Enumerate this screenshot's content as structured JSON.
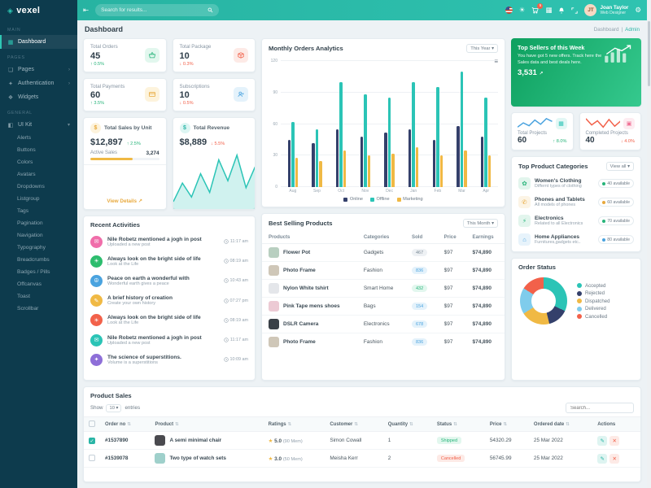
{
  "topbar": {
    "search_placeholder": "Search for results...",
    "cart_badge": "5",
    "user_name": "Joan Taylor",
    "user_role": "Web Designer",
    "avatar_initials": "JT"
  },
  "sidebar": {
    "logo_text": "vexel",
    "sections": {
      "main": "Main",
      "pages": "Pages",
      "general": "General"
    },
    "dashboard": "Dashboard",
    "pages": "Pages",
    "authentication": "Authentication",
    "widgets": "Widgets",
    "uikit": "UI Kit",
    "uikit_items": [
      "Alerts",
      "Buttons",
      "Colors",
      "Avatars",
      "Dropdowns",
      "Listgroup",
      "Tags",
      "Pagination",
      "Navigation",
      "Typography",
      "Breadcrumbs",
      "Badges / Pills",
      "Offcanvas",
      "Toast",
      "Scrollbar"
    ]
  },
  "page": {
    "title": "Dashboard",
    "crumb_parent": "Dashboard",
    "crumb_sep": "|",
    "crumb_current": "Admin"
  },
  "stats": [
    {
      "label": "Total Orders",
      "value": "45",
      "delta": "0.5%",
      "dir": "up"
    },
    {
      "label": "Total Package",
      "value": "10",
      "delta": "0.3%",
      "dir": "down"
    },
    {
      "label": "Total Payments",
      "value": "60",
      "delta": "3.5%",
      "dir": "up"
    },
    {
      "label": "Subscriptions",
      "value": "10",
      "delta": "0.5%",
      "dir": "down"
    }
  ],
  "sales_card": {
    "title": "Total Sales by Unit",
    "value": "$12,897",
    "delta": "2.5%",
    "active_label": "Active Sales",
    "active_value": "3,274",
    "progress_pct": 62,
    "link": "View Details"
  },
  "revenue_card": {
    "title": "Total Revenue",
    "value": "$8,889",
    "delta": "5.5%"
  },
  "monthly": {
    "title": "Monthly Orders Analytics",
    "range": "This Year"
  },
  "top_sellers": {
    "title": "Top Sellers of this Week",
    "body": "You have got 5 new offers. Track here the Sales data and best deals here.",
    "value": "3,531"
  },
  "projects": [
    {
      "label": "Total Projects",
      "value": "60",
      "delta": "8.0%",
      "dir": "up",
      "icon_color": "#2bc4b6"
    },
    {
      "label": "Completed Projects",
      "value": "40",
      "delta": "4.0%",
      "dir": "down",
      "icon_color": "#f06e93"
    }
  ],
  "categories": {
    "title": "Top Product Categories",
    "range": "View all",
    "items": [
      {
        "name": "Women's Clothing",
        "desc": "Differnt types of clothing",
        "badge": "40 available",
        "color": "#27b47a",
        "icon": "✿"
      },
      {
        "name": "Phones and Tablets",
        "desc": "All models of phones",
        "badge": "60 available",
        "color": "#e8a93c",
        "icon": "✆"
      },
      {
        "name": "Electronics",
        "desc": "Related to all Electronics",
        "badge": "70 available",
        "color": "#27b47a",
        "icon": "⚡"
      },
      {
        "name": "Home Appliances",
        "desc": "Furnitures,gadgets etc..",
        "badge": "80 available",
        "color": "#4aa3df",
        "icon": "⌂"
      }
    ]
  },
  "order_status": {
    "title": "Order Status"
  },
  "activities": {
    "title": "Recent Activities",
    "items": [
      {
        "title": "Nile Robetz mentioned a jogh in post",
        "sub": "Uploaded a new post",
        "time": "11:17 am",
        "color": "#f06eaa",
        "icon": "✉"
      },
      {
        "title": "Always look on the bright side of life",
        "sub": "Look at the Life",
        "time": "08:19 am",
        "color": "#2dbd6e",
        "icon": "☀"
      },
      {
        "title": "Peace on earth a wonderful with",
        "sub": "Wonderful earth gives a peace",
        "time": "10:43 am",
        "color": "#4aa3df",
        "icon": "☮"
      },
      {
        "title": "A brief history of creation",
        "sub": "Create your own history",
        "time": "07:27 pm",
        "color": "#f0b944",
        "icon": "✎"
      },
      {
        "title": "Always look on the bright side of life",
        "sub": "Look at the Life",
        "time": "08:19 am",
        "color": "#f2614a",
        "icon": "☀"
      },
      {
        "title": "Nile Robetz mentioned a jogh in post",
        "sub": "Uploaded a new post",
        "time": "11:17 am",
        "color": "#2bc4b6",
        "icon": "✉"
      },
      {
        "title": "The science of superstitions.",
        "sub": "Volume is a superstitions",
        "time": "10:09 am",
        "color": "#8e6fd8",
        "icon": "✦"
      }
    ]
  },
  "best_selling": {
    "title": "Best Selling Products",
    "range": "This Month",
    "headers": [
      "Products",
      "Categories",
      "Sold",
      "Price",
      "Earnings"
    ],
    "rows": [
      {
        "product": "Flower Pot",
        "category": "Gadgets",
        "sold": "467",
        "price": "$97",
        "earnings": "$74,890",
        "thumb": "#b8cfc0"
      },
      {
        "product": "Photo Frame",
        "category": "Fashion",
        "sold": "836",
        "price": "$97",
        "earnings": "$74,890",
        "thumb": "#cfc7b8"
      },
      {
        "product": "Nylon White tshirt",
        "category": "Smart Home",
        "sold": "432",
        "price": "$97",
        "earnings": "$74,890",
        "thumb": "#e4e6ea"
      },
      {
        "product": "Pink Tape mens shoes",
        "category": "Bags",
        "sold": "154",
        "price": "$97",
        "earnings": "$74,890",
        "thumb": "#eccad4"
      },
      {
        "product": "DSLR Camera",
        "category": "Electronics",
        "sold": "678",
        "price": "$97",
        "earnings": "$74,890",
        "thumb": "#3a4047"
      },
      {
        "product": "Photo Frame",
        "category": "Fashion",
        "sold": "836",
        "price": "$97",
        "earnings": "$74,890",
        "thumb": "#cfc7b8"
      }
    ]
  },
  "product_sales": {
    "title": "Product Sales",
    "show_label": "Show",
    "entries_value": "10",
    "entries_label": "entries",
    "search_placeholder": "Search...",
    "headers": [
      "Order no",
      "Product",
      "Ratings",
      "Customer",
      "Quantity",
      "Status",
      "Price",
      "Ordered date",
      "Actions"
    ],
    "rows": [
      {
        "order": "#1537890",
        "product": "A semi minimal chair",
        "thumb": "#4a4a4f",
        "rating": "5.0",
        "rating_note": "(90 Mem)",
        "customer": "Simon Cowall",
        "qty": "1",
        "status": "Shipped",
        "price": "54320.29",
        "date": "25 Mar 2022"
      },
      {
        "order": "#1539078",
        "product": "Two type of watch sets",
        "thumb": "#9fd0cb",
        "rating": "3.0",
        "rating_note": "(50 Mem)",
        "customer": "Meisha Kerr",
        "qty": "2",
        "status": "Cancelled",
        "price": "56745.99",
        "date": "25 Mar 2022"
      }
    ]
  },
  "chart_data": [
    {
      "id": "monthly_orders",
      "type": "bar",
      "title": "Monthly Orders Analytics",
      "categories": [
        "Aug",
        "Sep",
        "Oct",
        "Nov",
        "Dec",
        "Jan",
        "Feb",
        "Mar",
        "Apr"
      ],
      "series": [
        {
          "name": "Online",
          "color": "#34406b",
          "values": [
            45,
            42,
            55,
            48,
            52,
            55,
            45,
            58,
            48
          ]
        },
        {
          "name": "Offline",
          "color": "#2bc4b6",
          "values": [
            62,
            55,
            100,
            88,
            85,
            100,
            95,
            110,
            85
          ]
        },
        {
          "name": "Marketing",
          "color": "#f0b944",
          "values": [
            28,
            25,
            35,
            30,
            32,
            38,
            30,
            35,
            30
          ]
        }
      ],
      "ylim": [
        0,
        120
      ],
      "yticks": [
        0,
        30,
        60,
        90,
        120
      ],
      "legend_position": "bottom"
    },
    {
      "id": "revenue_trend",
      "type": "area",
      "values": [
        22,
        38,
        26,
        46,
        30,
        58,
        40,
        62,
        34,
        52
      ],
      "color": "#2bc4b6",
      "fill": "rgba(43,196,182,0.22)"
    },
    {
      "id": "projects_trend",
      "type": "line",
      "values": [
        30,
        45,
        35,
        55,
        40,
        60,
        50
      ],
      "color": "#4aa3df"
    },
    {
      "id": "completed_trend",
      "type": "line",
      "values": [
        50,
        35,
        45,
        30,
        48,
        32,
        44
      ],
      "color": "#f2614a"
    },
    {
      "id": "order_status",
      "type": "pie",
      "labels": [
        "Accepted",
        "Rejected",
        "Dispatched",
        "Delivered",
        "Cancelled"
      ],
      "values": [
        32,
        14,
        20,
        18,
        16
      ],
      "colors": [
        "#2bc4b6",
        "#34406b",
        "#f0b944",
        "#7fccec",
        "#f2614a"
      ]
    }
  ]
}
